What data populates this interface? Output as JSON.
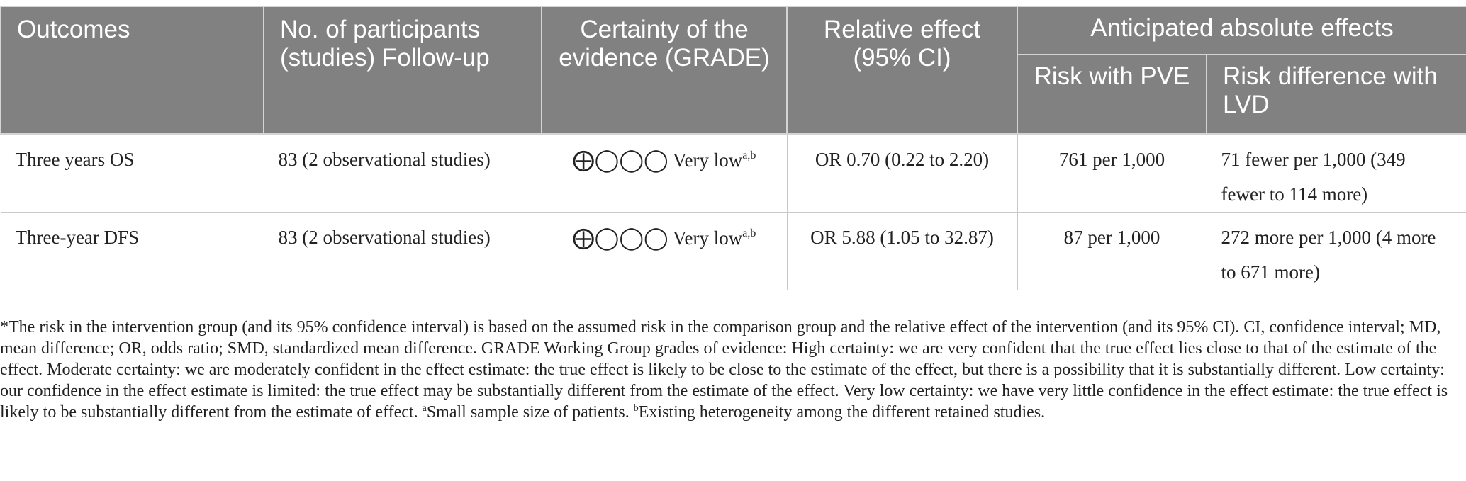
{
  "table": {
    "headers": {
      "outcomes": "Outcomes",
      "participants": "No. of participants (studies) Follow-up",
      "certainty": "Certainty of the evidence (GRADE)",
      "relative_effect": "Relative effect (95% CI)",
      "anticipated": "Anticipated absolute effects",
      "risk_pve": "Risk with PVE",
      "risk_difference": "Risk difference with LVD"
    },
    "rows": [
      {
        "outcome": "Three years OS",
        "participants": "83 (2 observational studies)",
        "certainty_symbols": "⨁◯◯◯",
        "certainty_label": "Very low",
        "certainty_note": "a,b",
        "relative_effect": "OR 0.70 (0.22 to 2.20)",
        "risk_pve": "761 per 1,000",
        "risk_difference": "71 fewer per 1,000 (349 fewer to 114 more)"
      },
      {
        "outcome": "Three-year DFS",
        "participants": "83 (2 observational studies)",
        "certainty_symbols": "⨁◯◯◯",
        "certainty_label": "Very low",
        "certainty_note": "a,b",
        "relative_effect": "OR 5.88 (1.05 to 32.87)",
        "risk_pve": "87 per 1,000",
        "risk_difference": "272 more per 1,000 (4 more to 671 more)"
      }
    ]
  },
  "footnote": {
    "main": "*The risk in the intervention group (and its 95% confidence interval) is based on the assumed risk in the comparison group and the relative effect of the intervention (and its 95% CI). CI, confidence interval; MD, mean difference; OR, odds ratio; SMD, standardized mean difference. GRADE Working Group grades of evidence: High certainty: we are very confident that the true effect lies close to that of the estimate of the effect. Moderate certainty: we are moderately confident in the effect estimate: the true effect is likely to be close to the estimate of the effect, but there is a possibility that it is substantially different. Low certainty: our confidence in the effect estimate is limited: the true effect may be substantially different from the estimate of the effect. Very low certainty: we have very little confidence in the effect estimate: the true effect is likely to be substantially different from the estimate of effect. ",
    "note_a_marker": "a",
    "note_a_text": "Small sample size of patients. ",
    "note_b_marker": "b",
    "note_b_text": "Existing heterogeneity among the different retained studies."
  }
}
